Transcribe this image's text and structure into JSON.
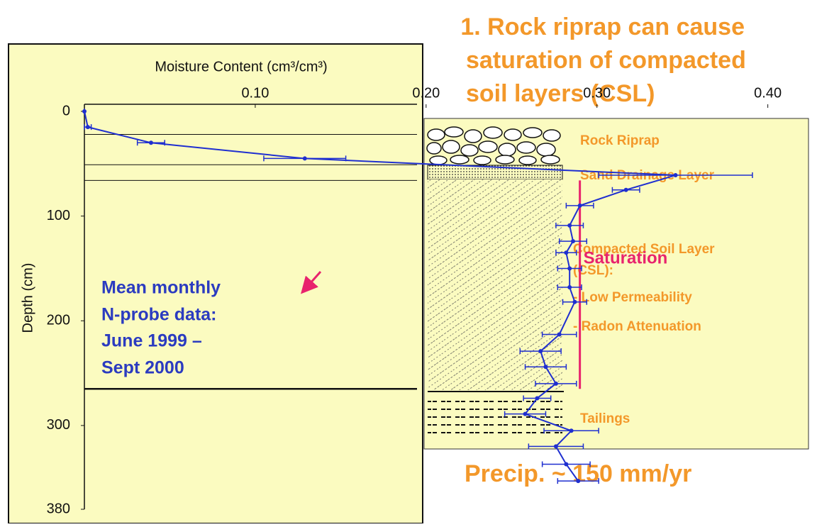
{
  "chart_data": {
    "type": "scatter",
    "title_lines": [
      "1. Rock riprap can cause",
      "saturation of compacted",
      "soil layers (CSL)"
    ],
    "x_label": "Moisture Content (cm³/cm³)",
    "y_label": "Depth (cm)",
    "xlim": [
      0,
      0.44
    ],
    "xticks": [
      {
        "value": 0.1,
        "label": "0.10"
      },
      {
        "value": 0.2,
        "label": "0.20"
      },
      {
        "value": 0.3,
        "label": "0.30"
      },
      {
        "value": 0.4,
        "label": "0.40"
      }
    ],
    "ylim": [
      0,
      380
    ],
    "yticks": [
      0,
      100,
      200,
      300,
      380
    ],
    "y_reversed": true,
    "series": [
      {
        "color": "#1f2fd0",
        "x": [
          0,
          0.002,
          0.039,
          0.129,
          0.346,
          0.317,
          0.29,
          0.284,
          0.286,
          0.282,
          0.284,
          0.284,
          0.287,
          0.278,
          0.267,
          0.27,
          0.276,
          0.265,
          0.258,
          0.285,
          0.276,
          0.282,
          0.289
        ],
        "values": [
          0,
          15,
          30,
          45,
          61,
          75,
          90,
          109,
          124,
          135,
          150,
          168,
          182,
          213,
          229,
          244,
          260,
          274,
          289,
          305,
          320,
          337,
          353
        ],
        "errors": [
          0,
          0.002,
          0.008,
          0.024,
          0.045,
          0.008,
          0.008,
          0.008,
          0.008,
          0.006,
          0.007,
          0.007,
          0.007,
          0.01,
          0.012,
          0.012,
          0.012,
          0.008,
          0.012,
          0.016,
          0.016,
          0.014,
          0.012
        ]
      }
    ],
    "layer_boundaries": [
      22,
      51,
      66,
      265
    ],
    "saturation": {
      "label": "Saturation",
      "color": "#e8236d",
      "value": 0.29,
      "depth_range": [
        66,
        265
      ]
    },
    "annotation_lines": [
      "Mean monthly",
      "N-probe data:",
      "June 1999 –",
      "Sept 2000"
    ],
    "layers": [
      "Rock Riprap",
      "Sand Drainage Layer",
      "Compacted Soil Layer",
      "(CSL):",
      "- Low Permeability",
      "- Radon Attenuation",
      "Tailings"
    ],
    "footer": "Precip. ~ 150 mm/yr"
  }
}
